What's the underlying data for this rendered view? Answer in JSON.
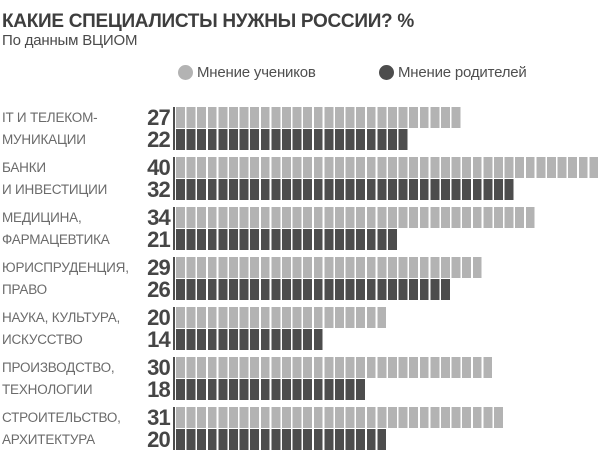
{
  "title": "КАКИЕ СПЕЦИАЛИСТЫ НУЖНЫ РОССИИ? %",
  "subtitle": "По данным ВЦИОМ",
  "legend": {
    "students": {
      "label": "Мнение учеников",
      "color": "#b3b3b3"
    },
    "parents": {
      "label": "Мнение родителей",
      "color": "#4d4d4d"
    }
  },
  "colors": {
    "background": "#ffffff",
    "title": "#3e3e3e",
    "category_label": "#6b6b6b",
    "value_label": "#464646",
    "axis_line": "#4d4d4d",
    "bar_students": "#b3b3b3",
    "bar_parents": "#4d4d4d"
  },
  "chart_data": {
    "type": "bar",
    "orientation": "horizontal",
    "value_unit": "%",
    "xlim": [
      0,
      40
    ],
    "grid": false,
    "legend_position": "top",
    "bar_style": "segmented, one segment per percent",
    "categories": [
      [
        "IT И ТЕЛЕКОМ-",
        "МУНИКАЦИИ"
      ],
      [
        "БАНКИ",
        "И ИНВЕСТИЦИИ"
      ],
      [
        "МЕДИЦИНА,",
        "ФАРМАЦЕВТИКА"
      ],
      [
        "ЮРИСПРУДЕНЦИЯ,",
        "ПРАВО"
      ],
      [
        "НАУКА, КУЛЬТУРА,",
        "ИСКУССТВО"
      ],
      [
        "ПРОИЗВОДСТВО,",
        "ТЕХНОЛОГИИ"
      ],
      [
        "СТРОИТЕЛЬСТВО,",
        "АРХИТЕКТУРА"
      ]
    ],
    "series": [
      {
        "name": "Мнение учеников",
        "color": "#b3b3b3",
        "values": [
          27,
          40,
          34,
          29,
          20,
          30,
          31
        ]
      },
      {
        "name": "Мнение родителей",
        "color": "#4d4d4d",
        "values": [
          22,
          32,
          21,
          26,
          14,
          18,
          20
        ]
      }
    ]
  }
}
